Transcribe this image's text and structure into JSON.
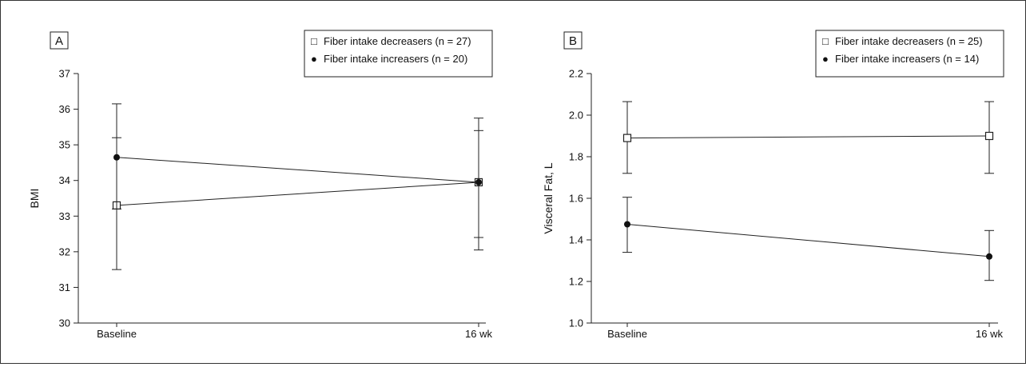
{
  "chart_data": [
    {
      "type": "line",
      "panel_label": "A",
      "ylabel": "BMI",
      "xlabel": "",
      "categories": [
        "Baseline",
        "16 wk"
      ],
      "ylim": [
        30,
        37
      ],
      "yticks": [
        "30",
        "31",
        "32",
        "33",
        "34",
        "35",
        "36",
        "37"
      ],
      "grid": false,
      "legend_position": "top-right",
      "legend_symbols": [
        "□",
        "●"
      ],
      "series": [
        {
          "name": "Fiber intake decreasers (n = 27)",
          "marker": "open-square",
          "values": [
            33.3,
            33.95
          ],
          "error_low": [
            31.5,
            32.4
          ],
          "error_high": [
            35.2,
            35.4
          ]
        },
        {
          "name": "Fiber intake increasers (n = 20)",
          "marker": "filled-circle",
          "values": [
            34.65,
            33.95
          ],
          "error_low": [
            33.2,
            32.05
          ],
          "error_high": [
            36.15,
            35.75
          ]
        }
      ]
    },
    {
      "type": "line",
      "panel_label": "B",
      "ylabel": "Visceral Fat, L",
      "xlabel": "",
      "categories": [
        "Baseline",
        "16 wk"
      ],
      "ylim": [
        1.0,
        2.2
      ],
      "yticks": [
        "1.0",
        "1.2",
        "1.4",
        "1.6",
        "1.8",
        "2.0",
        "2.2"
      ],
      "grid": false,
      "legend_position": "top-right",
      "legend_symbols": [
        "□",
        "●"
      ],
      "series": [
        {
          "name": "Fiber intake decreasers (n = 25)",
          "marker": "open-square",
          "values": [
            1.89,
            1.9
          ],
          "error_low": [
            1.72,
            1.72
          ],
          "error_high": [
            2.065,
            2.065
          ]
        },
        {
          "name": "Fiber intake increasers (n = 14)",
          "marker": "filled-circle",
          "values": [
            1.475,
            1.32
          ],
          "error_low": [
            1.34,
            1.205
          ],
          "error_high": [
            1.605,
            1.445
          ]
        }
      ]
    }
  ]
}
